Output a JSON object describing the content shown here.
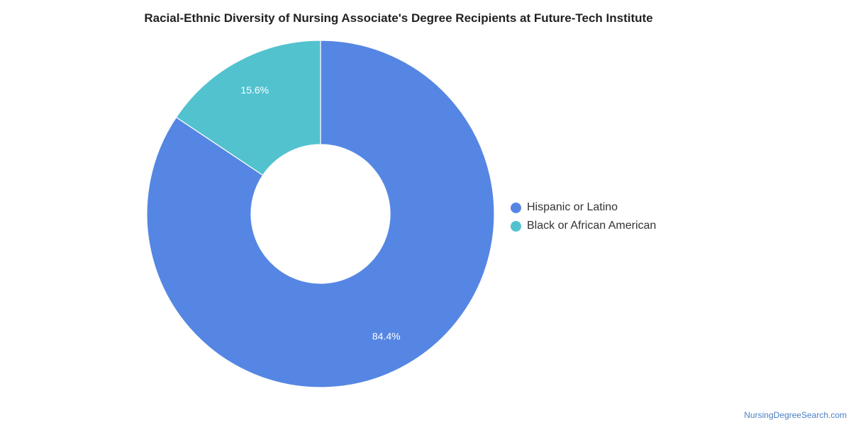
{
  "chart_data": {
    "type": "pie",
    "title": "Racial-Ethnic Diversity of Nursing Associate's Degree Recipients at Future-Tech Institute",
    "donut": true,
    "slices": [
      {
        "label": "Hispanic or Latino",
        "value": 84.4,
        "display": "84.4%",
        "color": "#5586e3"
      },
      {
        "label": "Black or African American",
        "value": 15.6,
        "display": "15.6%",
        "color": "#52c2cf"
      }
    ],
    "legend_position": "right"
  },
  "footer": {
    "source": "NursingDegreeSearch.com"
  }
}
